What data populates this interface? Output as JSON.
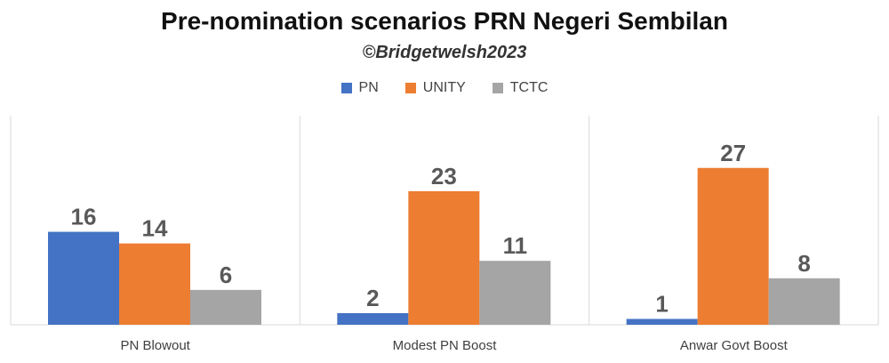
{
  "chart_data": {
    "type": "bar",
    "title": "Pre-nomination scenarios PRN Negeri Sembilan",
    "subtitle": "©Bridgetwelsh2023",
    "categories": [
      "PN Blowout",
      "Modest PN Boost",
      "Anwar Govt Boost"
    ],
    "series": [
      {
        "name": "PN",
        "color": "#4472C4",
        "values": [
          16,
          2,
          1
        ]
      },
      {
        "name": "UNITY",
        "color": "#ED7D31",
        "values": [
          14,
          23,
          27
        ]
      },
      {
        "name": "TCTC",
        "color": "#A5A5A5",
        "values": [
          6,
          11,
          8
        ]
      }
    ],
    "ylim": [
      0,
      36
    ],
    "legend_position": "top",
    "grid": false
  }
}
